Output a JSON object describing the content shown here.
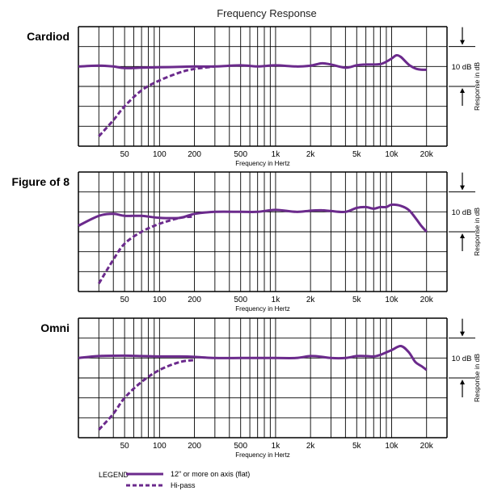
{
  "title": "Frequency Response",
  "colors": {
    "curve": "#6b2a8c",
    "grid": "#000000",
    "background": "#ffffff"
  },
  "chart_data": [
    {
      "type": "line",
      "label": "Cardiod",
      "x_scale": "log",
      "xlim": [
        20,
        30000
      ],
      "xticks": [
        50,
        100,
        200,
        500,
        1000,
        2000,
        5000,
        10000,
        20000
      ],
      "xtick_labels": [
        "50",
        "100",
        "200",
        "500",
        "1k",
        "2k",
        "5k",
        "10k",
        "20k"
      ],
      "xlabel": "Frequency in Hertz",
      "ylabel": "Response in dB",
      "scale_marker": "10 dB",
      "ylim": [
        -20,
        10
      ],
      "grid": true,
      "series": [
        {
          "name": "12\" or more on axis (flat)",
          "style": "solid",
          "x": [
            20,
            30,
            40,
            50,
            70,
            100,
            150,
            200,
            300,
            500,
            700,
            1000,
            1500,
            2000,
            2500,
            3000,
            4000,
            5000,
            6000,
            7000,
            8000,
            9000,
            10000,
            11000,
            12000,
            14000,
            16000,
            18000,
            20000
          ],
          "y": [
            0,
            0.2,
            0,
            -0.4,
            -0.3,
            -0.2,
            -0.1,
            0,
            0,
            0.3,
            0,
            0.3,
            0,
            0.2,
            0.8,
            0.5,
            -0.3,
            0.3,
            0.5,
            0.5,
            0.6,
            1.2,
            2,
            2.8,
            2.4,
            0.5,
            -0.5,
            -0.8,
            -0.8
          ]
        },
        {
          "name": "Hi-pass",
          "style": "dashed",
          "x": [
            30,
            40,
            50,
            70,
            100,
            150,
            200,
            300
          ],
          "y": [
            -17.5,
            -13.5,
            -10,
            -6,
            -3.5,
            -1.5,
            -0.6,
            0
          ]
        }
      ]
    },
    {
      "type": "line",
      "label": "Figure of 8",
      "x_scale": "log",
      "xlim": [
        20,
        30000
      ],
      "xticks": [
        50,
        100,
        200,
        500,
        1000,
        2000,
        5000,
        10000,
        20000
      ],
      "xtick_labels": [
        "50",
        "100",
        "200",
        "500",
        "1k",
        "2k",
        "5k",
        "10k",
        "20k"
      ],
      "xlabel": "Frequency in Hertz",
      "ylabel": "Response in dB",
      "scale_marker": "10 dB",
      "ylim": [
        -20,
        10
      ],
      "grid": true,
      "series": [
        {
          "name": "12\" or more on axis (flat)",
          "style": "solid",
          "x": [
            20,
            30,
            40,
            50,
            70,
            100,
            150,
            200,
            300,
            500,
            700,
            1000,
            1500,
            2000,
            2500,
            3000,
            4000,
            5000,
            6000,
            7000,
            8000,
            9000,
            10000,
            12000,
            14000,
            16000,
            18000,
            20000
          ],
          "y": [
            -3.5,
            -1,
            -0.5,
            -1,
            -1,
            -1.5,
            -1.5,
            -0.5,
            0,
            0,
            0,
            0.5,
            0,
            0.3,
            0.4,
            0.2,
            0,
            1,
            1.2,
            0.8,
            1.2,
            1.2,
            1.8,
            1.5,
            0.5,
            -1.5,
            -3.5,
            -5
          ]
        },
        {
          "name": "Hi-pass",
          "style": "dashed",
          "x": [
            30,
            40,
            50,
            70,
            100,
            150,
            200
          ],
          "y": [
            -18,
            -12,
            -8,
            -5,
            -3,
            -1.5,
            -1.2
          ]
        }
      ]
    },
    {
      "type": "line",
      "label": "Omni",
      "x_scale": "log",
      "xlim": [
        20,
        30000
      ],
      "xticks": [
        50,
        100,
        200,
        500,
        1000,
        2000,
        5000,
        10000,
        20000
      ],
      "xtick_labels": [
        "50",
        "100",
        "200",
        "500",
        "1k",
        "2k",
        "5k",
        "10k",
        "20k"
      ],
      "xlabel": "Frequency in Hertz",
      "ylabel": "Response in dB",
      "scale_marker": "10 dB",
      "ylim": [
        -20,
        10
      ],
      "grid": true,
      "series": [
        {
          "name": "12\" or more on axis (flat)",
          "style": "solid",
          "x": [
            20,
            30,
            50,
            70,
            100,
            150,
            200,
            300,
            500,
            700,
            1000,
            1500,
            2000,
            2500,
            3000,
            4000,
            5000,
            6000,
            7000,
            8000,
            10000,
            12000,
            14000,
            16000,
            18000,
            20000
          ],
          "y": [
            0,
            0.5,
            0.6,
            0.5,
            0.4,
            0.4,
            0.3,
            0,
            0,
            0,
            0,
            0,
            0.5,
            0.3,
            0,
            0,
            0.5,
            0.5,
            0.4,
            0.8,
            2,
            3,
            1.5,
            -1,
            -2,
            -3
          ]
        },
        {
          "name": "Hi-pass",
          "style": "dashed",
          "x": [
            30,
            40,
            50,
            70,
            100,
            150,
            200
          ],
          "y": [
            -18,
            -14,
            -10,
            -6,
            -3,
            -1,
            -0.5
          ]
        }
      ]
    }
  ],
  "legend": {
    "title": "LEGEND",
    "items": [
      {
        "label": "12\" or more on axis (flat)",
        "style": "solid"
      },
      {
        "label": "Hi-pass",
        "style": "dashed"
      }
    ]
  }
}
